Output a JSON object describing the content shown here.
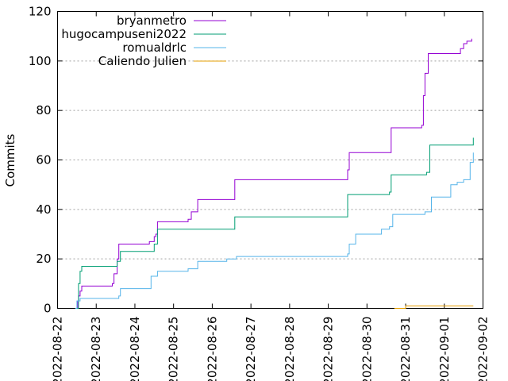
{
  "chart_data": {
    "type": "line",
    "title": "",
    "xlabel": "",
    "ylabel": "Commits",
    "ylim": [
      0,
      120
    ],
    "xlim": [
      "2022-08-22",
      "2022-09-02"
    ],
    "y_ticks": [
      "0",
      "20",
      "40",
      "60",
      "80",
      "100",
      "120"
    ],
    "x_ticks": [
      "2022-08-22",
      "2022-08-23",
      "2022-08-24",
      "2022-08-25",
      "2022-08-26",
      "2022-08-27",
      "2022-08-28",
      "2022-08-29",
      "2022-08-30",
      "2022-08-31",
      "2022-09-01",
      "2022-09-02"
    ],
    "grid": "horizontal dotted",
    "legend_position": "top-left",
    "series": [
      {
        "name": "bryanmetro",
        "color": "#9400d3",
        "x": [
          "2022-08-22 12:00",
          "2022-08-22 12:30",
          "2022-08-22 13:00",
          "2022-08-22 14:00",
          "2022-08-22 15:00",
          "2022-08-23 10:00",
          "2022-08-23 11:00",
          "2022-08-23 13:00",
          "2022-08-23 14:00",
          "2022-08-24 08:00",
          "2022-08-24 09:00",
          "2022-08-24 12:00",
          "2022-08-24 13:00",
          "2022-08-24 14:00",
          "2022-08-25 09:00",
          "2022-08-25 11:00",
          "2022-08-25 15:00",
          "2022-08-26 13:00",
          "2022-08-26 14:00",
          "2022-08-29 10:00",
          "2022-08-29 12:00",
          "2022-08-29 13:00",
          "2022-08-30 13:00",
          "2022-08-30 15:00",
          "2022-08-31 10:00",
          "2022-08-31 11:00",
          "2022-08-31 12:00",
          "2022-08-31 14:00",
          "2022-08-31 16:00",
          "2022-08-31 18:00",
          "2022-09-01 08:00",
          "2022-09-01 10:00",
          "2022-09-01 12:00",
          "2022-09-01 14:00",
          "2022-09-01 15:00",
          "2022-09-01 17:00"
        ],
        "values": [
          0,
          3,
          5,
          7,
          9,
          10,
          14,
          20,
          26,
          26,
          27,
          29,
          30,
          35,
          36,
          39,
          44,
          44,
          52,
          52,
          56,
          63,
          63,
          73,
          74,
          86,
          95,
          103,
          103,
          103,
          103,
          105,
          107,
          108,
          108,
          109
        ]
      },
      {
        "name": "hugocampuseni2022",
        "color": "#009e73",
        "x": [
          "2022-08-22 12:00",
          "2022-08-22 13:00",
          "2022-08-22 14:00",
          "2022-08-22 15:00",
          "2022-08-23 13:00",
          "2022-08-23 15:00",
          "2022-08-24 12:00",
          "2022-08-24 14:00",
          "2022-08-26 12:00",
          "2022-08-26 14:00",
          "2022-08-29 10:00",
          "2022-08-29 12:00",
          "2022-08-30 14:00",
          "2022-08-30 15:00",
          "2022-08-31 13:00",
          "2022-08-31 15:00",
          "2022-09-01 17:00",
          "2022-09-01 18:00"
        ],
        "values": [
          0,
          10,
          15,
          17,
          19,
          23,
          26,
          32,
          32,
          37,
          37,
          46,
          47,
          54,
          55,
          66,
          66,
          69
        ]
      },
      {
        "name": "romualdrlc",
        "color": "#56b4e9",
        "x": [
          "2022-08-22 11:00",
          "2022-08-22 12:00",
          "2022-08-22 14:00",
          "2022-08-23 08:00",
          "2022-08-23 14:00",
          "2022-08-23 15:00",
          "2022-08-24 08:00",
          "2022-08-24 10:00",
          "2022-08-24 14:00",
          "2022-08-25 09:00",
          "2022-08-25 15:00",
          "2022-08-26 09:00",
          "2022-08-26 15:00",
          "2022-08-29 12:00",
          "2022-08-29 13:00",
          "2022-08-29 17:00",
          "2022-08-30 09:00",
          "2022-08-30 14:00",
          "2022-08-30 16:00",
          "2022-08-31 12:00",
          "2022-08-31 16:00",
          "2022-09-01 04:00",
          "2022-09-01 08:00",
          "2022-09-01 12:00",
          "2022-09-01 16:00",
          "2022-09-01 18:00"
        ],
        "values": [
          0,
          3,
          4,
          4,
          5,
          8,
          8,
          13,
          15,
          16,
          19,
          20,
          21,
          22,
          26,
          30,
          32,
          33,
          38,
          39,
          45,
          50,
          51,
          52,
          59,
          63
        ]
      },
      {
        "name": "Caliendo Julien",
        "color": "#e69f00",
        "x": [
          "2022-08-30 17:00",
          "2022-08-31 00:00",
          "2022-09-01 18:00"
        ],
        "values": [
          0,
          1,
          1
        ]
      }
    ]
  }
}
